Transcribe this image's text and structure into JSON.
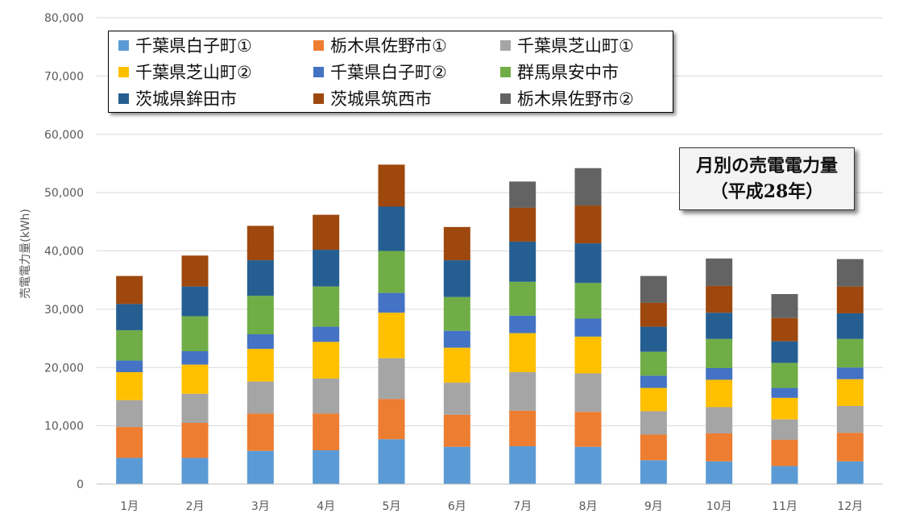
{
  "chart_data": {
    "type": "bar",
    "stacked": true,
    "title": "月別の売電電力量",
    "subtitle": "（平成28年）",
    "ylabel": "売電電力量(kWh)",
    "xlabel": "",
    "ylim": [
      0,
      80000
    ],
    "yticks": [
      0,
      10000,
      20000,
      30000,
      40000,
      50000,
      60000,
      70000,
      80000
    ],
    "ytick_labels": [
      "0",
      "10,000",
      "20,000",
      "30,000",
      "40,000",
      "50,000",
      "60,000",
      "70,000",
      "80,000"
    ],
    "grid": true,
    "legend_position": "top-left",
    "categories": [
      "1月",
      "2月",
      "3月",
      "4月",
      "5月",
      "6月",
      "7月",
      "8月",
      "9月",
      "10月",
      "11月",
      "12月"
    ],
    "series": [
      {
        "name": "千葉県白子町①",
        "color": "#5B9BD5",
        "values": [
          4500,
          4500,
          5700,
          5800,
          7700,
          6400,
          6500,
          6400,
          4100,
          3900,
          3100,
          3900
        ]
      },
      {
        "name": "栃木県佐野市①",
        "color": "#ED7D31",
        "values": [
          5300,
          6000,
          6400,
          6300,
          6900,
          5500,
          6100,
          6000,
          4400,
          4800,
          4500,
          4900
        ]
      },
      {
        "name": "千葉県芝山町①",
        "color": "#A5A5A5",
        "values": [
          4600,
          5000,
          5500,
          6000,
          7000,
          5500,
          6600,
          6600,
          4000,
          4500,
          3500,
          4600
        ]
      },
      {
        "name": "千葉県芝山町②",
        "color": "#FFC000",
        "values": [
          4800,
          5000,
          5600,
          6300,
          7800,
          6000,
          6700,
          6300,
          4000,
          4700,
          3700,
          4600
        ]
      },
      {
        "name": "千葉県白子町②",
        "color": "#4472C4",
        "values": [
          2000,
          2300,
          2500,
          2600,
          3400,
          2900,
          3000,
          3100,
          2100,
          2000,
          1700,
          2000
        ]
      },
      {
        "name": "群馬県安中市",
        "color": "#70AD47",
        "values": [
          5200,
          6000,
          6600,
          6900,
          7200,
          5800,
          5800,
          6100,
          4100,
          5000,
          4300,
          4900
        ]
      },
      {
        "name": "茨城県鉾田市",
        "color": "#255E91",
        "values": [
          4500,
          5100,
          6100,
          6300,
          7600,
          6300,
          6900,
          6800,
          4300,
          4500,
          3700,
          4400
        ]
      },
      {
        "name": "茨城県筑西市",
        "color": "#9E480E",
        "values": [
          4800,
          5300,
          5900,
          6000,
          7200,
          5700,
          5800,
          6500,
          4100,
          4600,
          4000,
          4600
        ]
      },
      {
        "name": "栃木県佐野市②",
        "color": "#636363",
        "values": [
          0,
          0,
          0,
          0,
          0,
          0,
          4500,
          6400,
          4600,
          4700,
          4100,
          4700
        ]
      }
    ]
  }
}
